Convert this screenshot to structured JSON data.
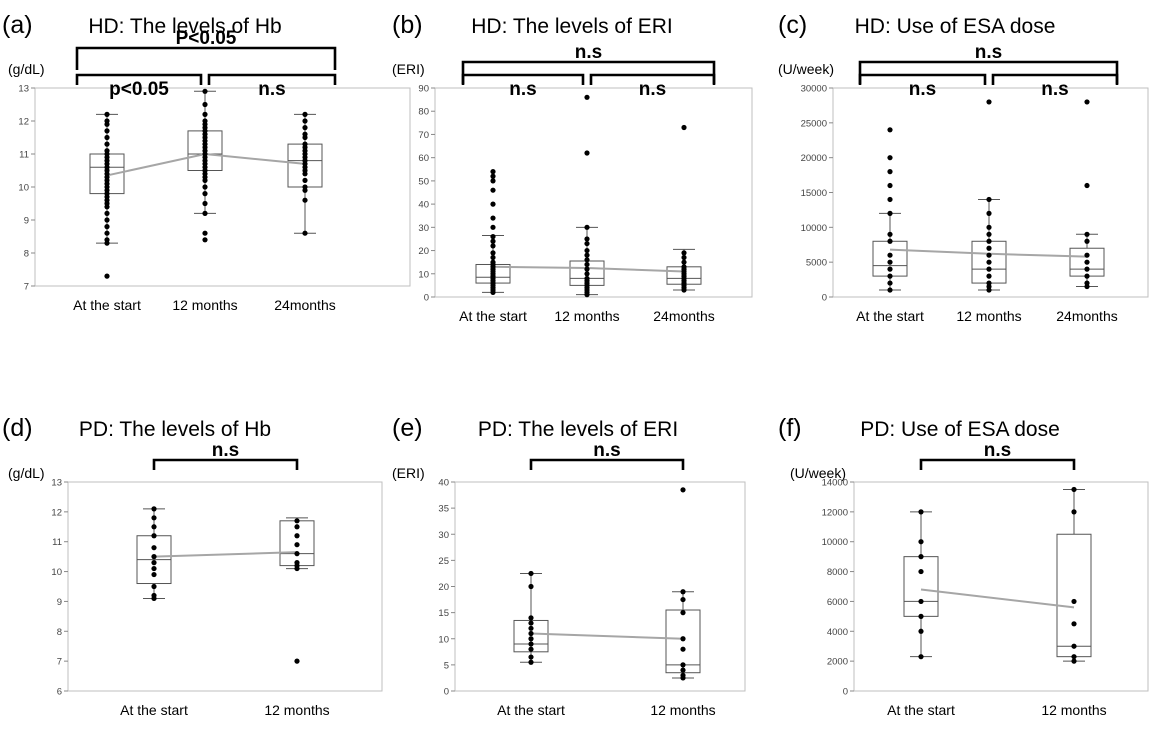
{
  "chart_data": [
    {
      "type": "boxplot",
      "panel_label": "(a)",
      "title": "HD: The levels of Hb",
      "unit_label": "(g/dL)",
      "categories": [
        "At the start",
        "12 months",
        "24months"
      ],
      "ylim": [
        7,
        13
      ],
      "yticks": [
        7,
        8,
        9,
        10,
        11,
        12,
        13
      ],
      "boxes": [
        {
          "whisker_low": 8.3,
          "q1": 9.8,
          "median": 10.6,
          "q3": 11.0,
          "whisker_high": 12.2,
          "mean": 10.35
        },
        {
          "whisker_low": 9.2,
          "q1": 10.5,
          "median": 11.0,
          "q3": 11.7,
          "whisker_high": 12.9,
          "mean": 11.0
        },
        {
          "whisker_low": 8.6,
          "q1": 10.0,
          "median": 10.8,
          "q3": 11.3,
          "whisker_high": 12.2,
          "mean": 10.7
        }
      ],
      "points": [
        [
          7.3,
          8.3,
          8.4,
          8.6,
          8.8,
          9.0,
          9.2,
          9.4,
          9.5,
          9.6,
          9.7,
          9.8,
          9.9,
          10.0,
          10.1,
          10.2,
          10.3,
          10.4,
          10.5,
          10.6,
          10.7,
          10.8,
          10.9,
          11.0,
          11.1,
          11.3,
          11.5,
          11.7,
          11.9,
          12.0,
          12.2
        ],
        [
          8.4,
          8.6,
          9.2,
          9.5,
          9.8,
          10.0,
          10.2,
          10.3,
          10.4,
          10.5,
          10.6,
          10.7,
          10.8,
          10.9,
          11.0,
          11.1,
          11.2,
          11.3,
          11.4,
          11.5,
          11.6,
          11.7,
          11.8,
          11.9,
          12.0,
          12.2,
          12.5,
          12.9
        ],
        [
          8.6,
          9.6,
          9.9,
          10.0,
          10.2,
          10.4,
          10.5,
          10.6,
          10.7,
          10.8,
          10.9,
          11.0,
          11.1,
          11.2,
          11.3,
          11.5,
          11.6,
          11.8,
          12.0,
          12.2
        ]
      ],
      "brackets": [
        {
          "from": 0,
          "to": 2,
          "level": 3,
          "text": "P<0.05"
        },
        {
          "from": 0,
          "to": 1,
          "level": 2,
          "text": "p<0.05"
        },
        {
          "from": 1,
          "to": 2,
          "level": 2,
          "text": "n.s"
        }
      ]
    },
    {
      "type": "boxplot",
      "panel_label": "(b)",
      "title": "HD: The levels of ERI",
      "unit_label": "(ERI)",
      "categories": [
        "At the start",
        "12 months",
        "24months"
      ],
      "ylim": [
        0,
        90
      ],
      "yticks": [
        0,
        10,
        20,
        30,
        40,
        50,
        60,
        70,
        80,
        90
      ],
      "boxes": [
        {
          "whisker_low": 2,
          "q1": 6,
          "median": 8.5,
          "q3": 14,
          "whisker_high": 26.5,
          "mean": 13
        },
        {
          "whisker_low": 1,
          "q1": 5,
          "median": 8,
          "q3": 15.5,
          "whisker_high": 30,
          "mean": 12.5
        },
        {
          "whisker_low": 3,
          "q1": 5.5,
          "median": 8,
          "q3": 13,
          "whisker_high": 20.5,
          "mean": 11
        }
      ],
      "points": [
        [
          2,
          3,
          4,
          5,
          6,
          7,
          8,
          9,
          10,
          11,
          12,
          13,
          14,
          15,
          17,
          19,
          22,
          24,
          26,
          30,
          34,
          40,
          46,
          50,
          52,
          54
        ],
        [
          1,
          2,
          3,
          4,
          5,
          6,
          7,
          8,
          10,
          12,
          14,
          16,
          18,
          20,
          23,
          25,
          30,
          62,
          86
        ],
        [
          3,
          4,
          5,
          6,
          7,
          8,
          9,
          10,
          11,
          12,
          13,
          15,
          17,
          19,
          73
        ]
      ],
      "brackets": [
        {
          "from": 0,
          "to": 2,
          "level": 3,
          "text": "n.s"
        },
        {
          "from": 0,
          "to": 1,
          "level": 2,
          "text": "n.s"
        },
        {
          "from": 1,
          "to": 2,
          "level": 2,
          "text": "n.s"
        }
      ]
    },
    {
      "type": "boxplot",
      "panel_label": "(c)",
      "title": "HD: Use of ESA dose",
      "unit_label": "(U/week)",
      "categories": [
        "At the start",
        "12 months",
        "24months"
      ],
      "ylim": [
        0,
        30000
      ],
      "yticks": [
        0,
        5000,
        10000,
        15000,
        20000,
        25000,
        30000
      ],
      "boxes": [
        {
          "whisker_low": 1000,
          "q1": 3000,
          "median": 4500,
          "q3": 8000,
          "whisker_high": 12000,
          "mean": 6800
        },
        {
          "whisker_low": 1000,
          "q1": 2000,
          "median": 4000,
          "q3": 8000,
          "whisker_high": 14000,
          "mean": 6200
        },
        {
          "whisker_low": 1500,
          "q1": 3000,
          "median": 4000,
          "q3": 7000,
          "whisker_high": 9000,
          "mean": 5800
        }
      ],
      "points": [
        [
          1000,
          2000,
          3000,
          4000,
          5000,
          6000,
          8000,
          9000,
          12000,
          14000,
          16000,
          18000,
          20000,
          24000
        ],
        [
          1000,
          1500,
          2000,
          3000,
          4000,
          5000,
          6000,
          7000,
          8000,
          9000,
          10000,
          12000,
          14000,
          28000
        ],
        [
          1500,
          2000,
          3000,
          4000,
          5000,
          6000,
          8000,
          9000,
          16000,
          28000
        ]
      ],
      "brackets": [
        {
          "from": 0,
          "to": 2,
          "level": 3,
          "text": "n.s"
        },
        {
          "from": 0,
          "to": 1,
          "level": 2,
          "text": "n.s"
        },
        {
          "from": 1,
          "to": 2,
          "level": 2,
          "text": "n.s"
        }
      ]
    },
    {
      "type": "boxplot",
      "panel_label": "(d)",
      "title": "PD: The levels of Hb",
      "unit_label": "(g/dL)",
      "categories": [
        "At the start",
        "12 months"
      ],
      "ylim": [
        6,
        13
      ],
      "yticks": [
        6,
        7,
        8,
        9,
        10,
        11,
        12,
        13
      ],
      "boxes": [
        {
          "whisker_low": 9.1,
          "q1": 9.6,
          "median": 10.4,
          "q3": 11.2,
          "whisker_high": 12.1,
          "mean": 10.5
        },
        {
          "whisker_low": 10.1,
          "q1": 10.2,
          "median": 10.6,
          "q3": 11.7,
          "whisker_high": 11.8,
          "mean": 10.65
        }
      ],
      "points": [
        [
          9.1,
          9.2,
          9.5,
          9.9,
          10.1,
          10.3,
          10.5,
          10.8,
          11.2,
          11.5,
          11.8,
          12.1
        ],
        [
          7.0,
          10.1,
          10.2,
          10.3,
          10.6,
          10.9,
          11.2,
          11.5,
          11.7
        ]
      ],
      "brackets": [
        {
          "from": 0,
          "to": 1,
          "level": 3,
          "text": "n.s"
        }
      ]
    },
    {
      "type": "boxplot",
      "panel_label": "(e)",
      "title": "PD: The levels of ERI",
      "unit_label": "(ERI)",
      "categories": [
        "At the start",
        "12 months"
      ],
      "ylim": [
        0,
        40
      ],
      "yticks": [
        0,
        5,
        10,
        15,
        20,
        25,
        30,
        35,
        40
      ],
      "boxes": [
        {
          "whisker_low": 5.5,
          "q1": 7.5,
          "median": 9,
          "q3": 13.5,
          "whisker_high": 22.5,
          "mean": 11
        },
        {
          "whisker_low": 2.5,
          "q1": 3.5,
          "median": 5,
          "q3": 15.5,
          "whisker_high": 19,
          "mean": 10
        }
      ],
      "points": [
        [
          5.5,
          6.5,
          8,
          9,
          10,
          11,
          12,
          13,
          14,
          20,
          22.5
        ],
        [
          2.5,
          3,
          4,
          5,
          8,
          10,
          15,
          17.5,
          19,
          38.5
        ]
      ],
      "brackets": [
        {
          "from": 0,
          "to": 1,
          "level": 3,
          "text": "n.s"
        }
      ]
    },
    {
      "type": "boxplot",
      "panel_label": "(f)",
      "title": "PD: Use of ESA dose",
      "unit_label": "(U/week)",
      "categories": [
        "At the start",
        "12 months"
      ],
      "ylim": [
        0,
        14000
      ],
      "yticks": [
        0,
        2000,
        4000,
        6000,
        8000,
        10000,
        12000,
        14000
      ],
      "boxes": [
        {
          "whisker_low": 2300,
          "q1": 5000,
          "median": 6000,
          "q3": 9000,
          "whisker_high": 12000,
          "mean": 6800
        },
        {
          "whisker_low": 2000,
          "q1": 2300,
          "median": 3000,
          "q3": 10500,
          "whisker_high": 13500,
          "mean": 5600
        }
      ],
      "points": [
        [
          2300,
          4000,
          5000,
          6000,
          8000,
          9000,
          10000,
          12000
        ],
        [
          2000,
          2300,
          3000,
          4500,
          6000,
          12000,
          13500
        ]
      ],
      "brackets": [
        {
          "from": 0,
          "to": 1,
          "level": 3,
          "text": "n.s"
        }
      ]
    }
  ]
}
